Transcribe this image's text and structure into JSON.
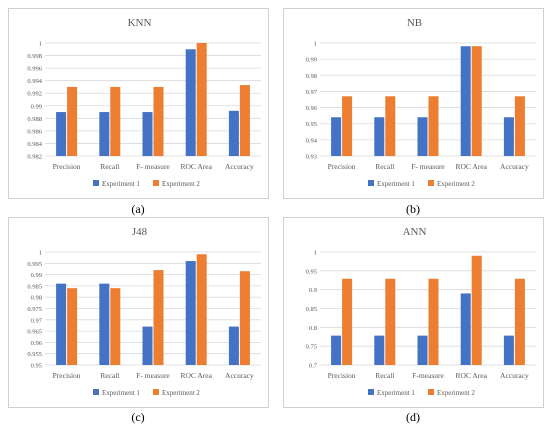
{
  "colors": {
    "experiment_1": "#4472c4",
    "experiment_2": "#ed7d31",
    "grid": "#d9d9d9",
    "text": "#595959"
  },
  "captions": [
    "(a)",
    "(b)",
    "(c)",
    "(d)"
  ],
  "chart_data": [
    {
      "type": "bar",
      "title": "KNN",
      "categories": [
        "Precision",
        "Recall",
        "F- measure",
        "ROC Area",
        "Accuracy"
      ],
      "series": [
        {
          "name": "Experiment 1",
          "values": [
            0.989,
            0.989,
            0.989,
            0.999,
            0.9892
          ]
        },
        {
          "name": "Experiment 2",
          "values": [
            0.993,
            0.993,
            0.993,
            1.0,
            0.9933
          ]
        }
      ],
      "ylim": [
        0.982,
        1
      ],
      "yticks": [
        "0.982",
        "0.984",
        "0.986",
        "0.988",
        "0.99",
        "0.992",
        "0.994",
        "0.996",
        "0.998",
        "1"
      ],
      "legend": "bottom",
      "grid": true
    },
    {
      "type": "bar",
      "title": "NB",
      "categories": [
        "Precision",
        "Recall",
        "F- measure",
        "ROC Area",
        "Accuracy"
      ],
      "series": [
        {
          "name": "Experiment 1",
          "values": [
            0.954,
            0.954,
            0.954,
            0.998,
            0.954
          ]
        },
        {
          "name": "Experiment 2",
          "values": [
            0.967,
            0.967,
            0.967,
            0.998,
            0.967
          ]
        }
      ],
      "ylim": [
        0.93,
        1
      ],
      "yticks": [
        "0.93",
        "0.94",
        "0.95",
        "0.96",
        "0.97",
        "0.98",
        "0.99",
        "1"
      ],
      "legend": "bottom",
      "grid": true
    },
    {
      "type": "bar",
      "title": "J48",
      "categories": [
        "Precision",
        "Recall",
        "F- measure",
        "ROC Area",
        "Accuracy"
      ],
      "series": [
        {
          "name": "Experiment 1",
          "values": [
            0.986,
            0.986,
            0.967,
            0.996,
            0.967
          ]
        },
        {
          "name": "Experiment 2",
          "values": [
            0.984,
            0.984,
            0.992,
            0.999,
            0.9915
          ]
        }
      ],
      "ylim": [
        0.95,
        1
      ],
      "yticks": [
        "0.95",
        "0.955",
        "0.96",
        "0.965",
        "0.97",
        "0.975",
        "0.98",
        "0.985",
        "0.99",
        "0.995",
        "1"
      ],
      "legend": "bottom",
      "grid": true
    },
    {
      "type": "bar",
      "title": "ANN",
      "categories": [
        "Precision",
        "Recall",
        "F-measure",
        "ROC Area",
        "Accuracy"
      ],
      "series": [
        {
          "name": "Experiment 1",
          "values": [
            0.778,
            0.778,
            0.778,
            0.89,
            0.778
          ]
        },
        {
          "name": "Experiment 2",
          "values": [
            0.929,
            0.929,
            0.929,
            0.99,
            0.929
          ]
        }
      ],
      "ylim": [
        0.7,
        1
      ],
      "yticks": [
        "0.7",
        "0.75",
        "0.8",
        "0.85",
        "0.9",
        "0.95",
        "1"
      ],
      "legend": "bottom",
      "grid": true
    }
  ]
}
